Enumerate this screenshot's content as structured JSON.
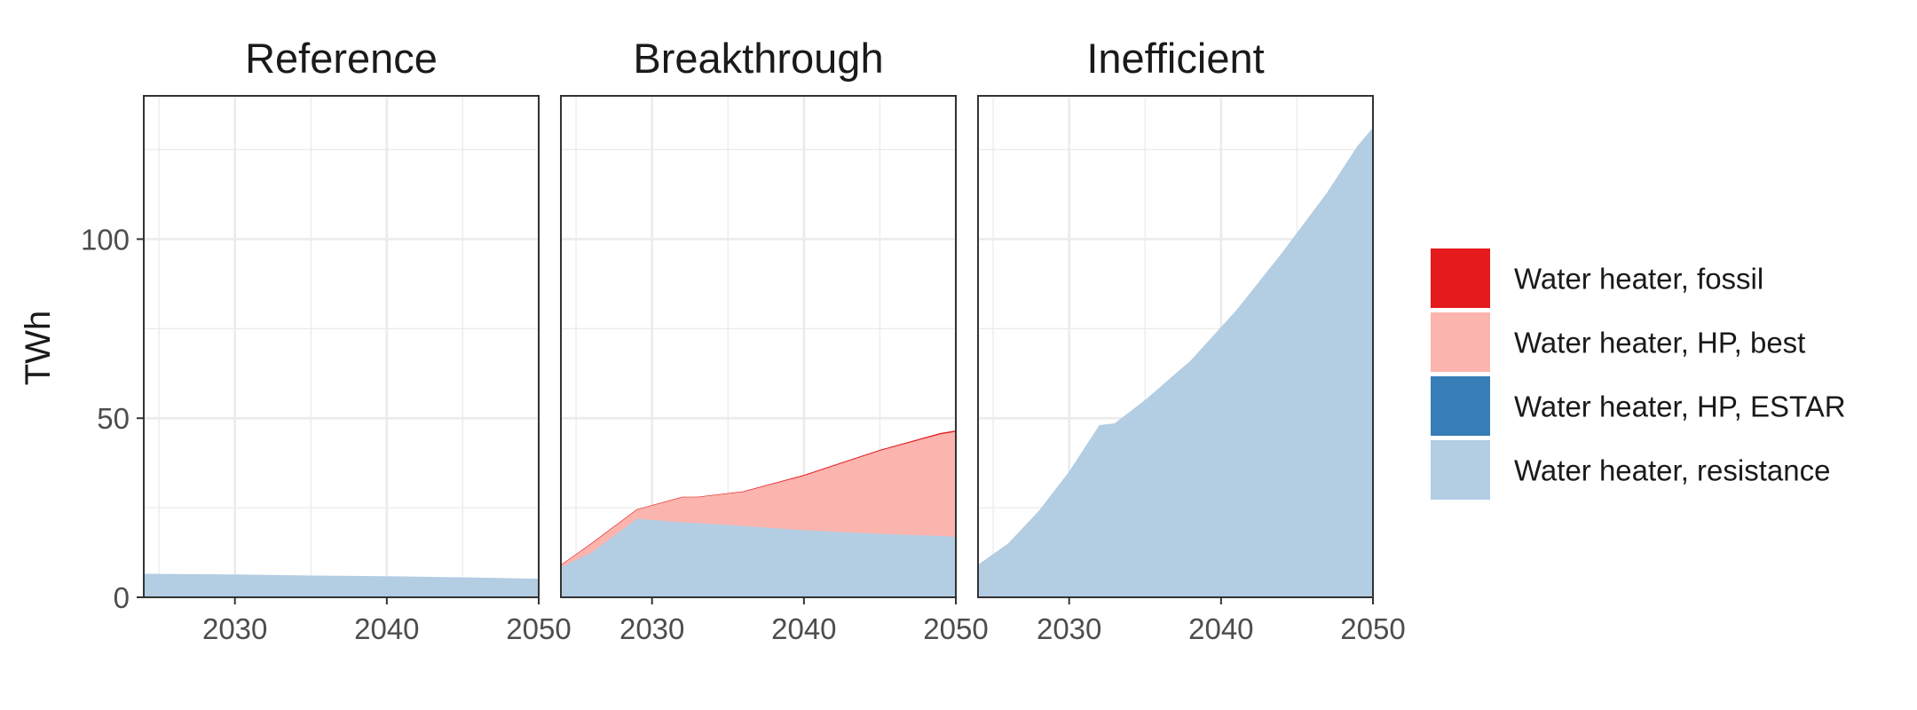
{
  "chart_data": {
    "type": "area",
    "stacked": true,
    "ylabel": "TWh",
    "xlabel": "",
    "xlim": [
      2024,
      2050
    ],
    "ylim": [
      0,
      140
    ],
    "x_ticks": [
      "2030",
      "2040",
      "2050"
    ],
    "y_ticks": [
      "0",
      "50",
      "100"
    ],
    "grid": true,
    "legend_position": "right",
    "legend": [
      {
        "name": "Water heater, fossil",
        "color": "#e41a1c"
      },
      {
        "name": "Water heater, HP, best",
        "color": "#fbb4ae"
      },
      {
        "name": "Water heater, HP, ESTAR",
        "color": "#377eb8"
      },
      {
        "name": "Water heater, resistance",
        "color": "#b3cde3"
      }
    ],
    "panels": [
      {
        "title": "Reference",
        "x": [
          2024,
          2030,
          2035,
          2040,
          2045,
          2050
        ],
        "series": [
          {
            "name": "Water heater, resistance",
            "values": [
              6.5,
              6.3,
              6.0,
              5.8,
              5.5,
              5.1
            ]
          },
          {
            "name": "Water heater, HP, ESTAR",
            "values": [
              0,
              0,
              0,
              0,
              0,
              0
            ]
          },
          {
            "name": "Water heater, HP, best",
            "values": [
              0,
              0,
              0,
              0,
              0,
              0
            ]
          },
          {
            "name": "Water heater, fossil",
            "values": [
              0,
              0,
              0,
              0,
              0,
              0
            ]
          }
        ]
      },
      {
        "title": "Breakthrough",
        "x": [
          2024,
          2026,
          2029,
          2032,
          2033,
          2036,
          2040,
          2045,
          2049,
          2050
        ],
        "series": [
          {
            "name": "Water heater, resistance",
            "values": [
              8.5,
              12.5,
              22,
              21,
              20.8,
              20,
              18.8,
              17.8,
              17.2,
              17
            ]
          },
          {
            "name": "Water heater, HP, ESTAR",
            "values": [
              0,
              0,
              0,
              0,
              0,
              0,
              0,
              0,
              0,
              0
            ]
          },
          {
            "name": "Water heater, HP, best",
            "values": [
              0.5,
              2.5,
              2.5,
              7,
              7.2,
              9.5,
              15.2,
              23.2,
              28.4,
              29.3
            ]
          },
          {
            "name": "Water heater, fossil",
            "values": [
              0,
              0,
              0,
              0,
              0,
              0,
              0.1,
              0.1,
              0.2,
              0.2
            ]
          }
        ]
      },
      {
        "title": "Inefficient",
        "x": [
          2024,
          2026,
          2028,
          2030,
          2032,
          2033,
          2035,
          2038,
          2041,
          2044,
          2047,
          2049,
          2050
        ],
        "series": [
          {
            "name": "Water heater, resistance",
            "values": [
              9,
              15,
              24,
              35,
              48,
              48.5,
              55,
              66,
              80,
              96,
              113,
              126,
              131
            ]
          },
          {
            "name": "Water heater, HP, ESTAR",
            "values": [
              0,
              0,
              0,
              0,
              0,
              0,
              0,
              0,
              0,
              0,
              0,
              0,
              0
            ]
          },
          {
            "name": "Water heater, HP, best",
            "values": [
              0,
              0,
              0,
              0,
              0,
              0,
              0,
              0,
              0,
              0,
              0,
              0,
              0
            ]
          },
          {
            "name": "Water heater, fossil",
            "values": [
              0,
              0,
              0,
              0,
              0,
              0,
              0,
              0,
              0,
              0,
              0,
              0,
              0
            ]
          }
        ]
      }
    ]
  }
}
